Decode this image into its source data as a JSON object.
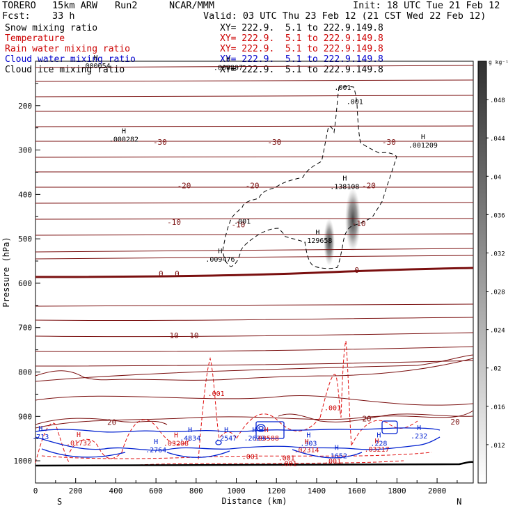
{
  "header": {
    "model": "TORERO",
    "resolution": "15km ARW",
    "run": "Run2",
    "org": "NCAR/MMM",
    "init": "Init: 18 UTC Tue 21 Feb 12",
    "fcst_label": "Fcst:",
    "fcst_value": "33 h",
    "valid": "Valid: 03 UTC Thu 23 Feb 12 (21 CST Wed 22 Feb 12)"
  },
  "fields": [
    {
      "name": "Snow mixing ratio",
      "xy": "XY= 222.9.  5.1 to 222.9.149.8",
      "color": "#000000"
    },
    {
      "name": "Temperature",
      "xy": "XY= 222.9.  5.1 to 222.9.149.8",
      "color": "#cc0000"
    },
    {
      "name": "Rain water mixing ratio",
      "xy": "XY= 222.9.  5.1 to 222.9.149.8",
      "color": "#cc0000"
    },
    {
      "name": "Cloud water mixing ratio",
      "xy": "XY= 222.9.  5.1 to 222.9.149.8",
      "color": "#0000cc"
    },
    {
      "name": "Cloud ice mixing ratio",
      "xy": "XY= 222.9.  5.1 to 222.9.149.8",
      "color": "#000000"
    }
  ],
  "chart_data": {
    "type": "contour",
    "xlabel": "Distance (km)",
    "ylabel": "Pressure (hPa)",
    "xlim": [
      0,
      2180
    ],
    "ylim": [
      1050,
      100
    ],
    "x_ticks": [
      0,
      200,
      400,
      600,
      800,
      1000,
      1200,
      1400,
      1600,
      1800,
      2000
    ],
    "y_ticks": [
      200,
      300,
      400,
      500,
      600,
      700,
      800,
      900,
      1000
    ],
    "direction_labels": {
      "left": "S",
      "right": "N"
    },
    "colorbar": {
      "unit": "g kg⁻¹",
      "ticks": [
        ".012",
        ".016",
        ".02",
        ".024",
        ".028",
        ".032",
        ".036",
        ".04",
        ".044",
        ".048"
      ],
      "range": [
        0.008,
        0.052
      ]
    },
    "temperature_isotherm_labels": [
      {
        "value": "-30",
        "x": 620,
        "p": 282
      },
      {
        "value": "-30",
        "x": 1190,
        "p": 282
      },
      {
        "value": "-30",
        "x": 1760,
        "p": 282
      },
      {
        "value": "-20",
        "x": 740,
        "p": 380
      },
      {
        "value": "-20",
        "x": 1080,
        "p": 380
      },
      {
        "value": "-20",
        "x": 1660,
        "p": 380
      },
      {
        "value": "-10",
        "x": 690,
        "p": 462
      },
      {
        "value": "-10",
        "x": 1010,
        "p": 468
      },
      {
        "value": "-10",
        "x": 1610,
        "p": 465
      },
      {
        "value": "0",
        "x": 625,
        "p": 578
      },
      {
        "value": "0",
        "x": 705,
        "p": 578
      },
      {
        "value": "0",
        "x": 1600,
        "p": 570
      },
      {
        "value": "10",
        "x": 690,
        "p": 718
      },
      {
        "value": "10",
        "x": 790,
        "p": 718
      },
      {
        "value": "20",
        "x": 380,
        "p": 913
      },
      {
        "value": "20",
        "x": 1650,
        "p": 905
      },
      {
        "value": "20",
        "x": 2090,
        "p": 912
      }
    ],
    "extrema": [
      {
        "marker": "H",
        "label": ".000054",
        "x": 300,
        "p": 106,
        "series": "Snow mixing ratio"
      },
      {
        "marker": "H",
        "label": ".000897",
        "x": 960,
        "p": 110,
        "series": "Cloud ice mixing ratio"
      },
      {
        "marker": "H",
        "label": ".000282",
        "x": 440,
        "p": 272,
        "series": "Snow mixing ratio"
      },
      {
        "marker": "H",
        "label": ".001209",
        "x": 1930,
        "p": 285,
        "series": "Snow mixing ratio"
      },
      {
        "marker": "H",
        "label": ".138108",
        "x": 1540,
        "p": 378,
        "series": "Snow mixing ratio"
      },
      {
        "marker": "H",
        "label": ".129658",
        "x": 1405,
        "p": 500,
        "series": "Snow mixing ratio"
      },
      {
        "marker": "H",
        "label": ".009476",
        "x": 920,
        "p": 542,
        "series": "Snow mixing ratio"
      },
      {
        "marker": "H",
        "label": ".01732",
        "x": 215,
        "p": 956,
        "series": "Rain water mixing ratio"
      },
      {
        "marker": "H",
        "label": ".2764",
        "x": 600,
        "p": 972,
        "series": "Cloud water mixing ratio"
      },
      {
        "marker": "H",
        "label": ".03208",
        "x": 700,
        "p": 957,
        "series": "Rain water mixing ratio"
      },
      {
        "marker": "H",
        "label": ".4834",
        "x": 770,
        "p": 945,
        "series": "Cloud water mixing ratio"
      },
      {
        "marker": "H",
        "label": ".2547",
        "x": 950,
        "p": 945,
        "series": "Cloud water mixing ratio"
      },
      {
        "marker": "H",
        "label": ".2623",
        "x": 1090,
        "p": 945,
        "series": "Cloud water mixing ratio"
      },
      {
        "marker": "H",
        "label": ".03588",
        "x": 1150,
        "p": 945,
        "series": "Rain water mixing ratio"
      },
      {
        "marker": "H",
        "label": ".303",
        "x": 1360,
        "p": 957,
        "series": "Cloud water mixing ratio"
      },
      {
        "marker": "H",
        "label": ".02314",
        "x": 1350,
        "p": 972,
        "series": "Rain water mixing ratio"
      },
      {
        "marker": "H",
        "label": ".1652",
        "x": 1500,
        "p": 985,
        "series": "Cloud water mixing ratio"
      },
      {
        "marker": "H",
        "label": ".228",
        "x": 1710,
        "p": 957,
        "series": "Cloud water mixing ratio"
      },
      {
        "marker": "H",
        "label": ".03217",
        "x": 1700,
        "p": 970,
        "series": "Rain water mixing ratio"
      },
      {
        "marker": "H",
        "label": ".232",
        "x": 1910,
        "p": 940,
        "series": "Cloud water mixing ratio"
      },
      {
        "marker": "H",
        "label": ".713",
        "x": 25,
        "p": 942,
        "series": "Cloud water mixing ratio"
      }
    ],
    "contour_labels": [
      {
        "text": ".001",
        "x": 1530,
        "p": 158,
        "color": "#000000"
      },
      {
        "text": ".001",
        "x": 1590,
        "p": 190,
        "color": "#000000"
      },
      {
        "text": ".001",
        "x": 1030,
        "p": 460,
        "color": "#000000"
      },
      {
        "text": ".001",
        "x": 900,
        "p": 848,
        "color": "#cc0000"
      },
      {
        "text": ".001",
        "x": 1480,
        "p": 880,
        "color": "#cc0000"
      },
      {
        "text": ".001",
        "x": 1070,
        "p": 990,
        "color": "#cc0000"
      },
      {
        "text": ".001",
        "x": 1250,
        "p": 993,
        "color": "#cc0000"
      },
      {
        "text": ".001",
        "x": 1480,
        "p": 1000,
        "color": "#cc0000"
      },
      {
        "text": ".001",
        "x": 1260,
        "p": 1005,
        "color": "#cc0000"
      }
    ]
  }
}
